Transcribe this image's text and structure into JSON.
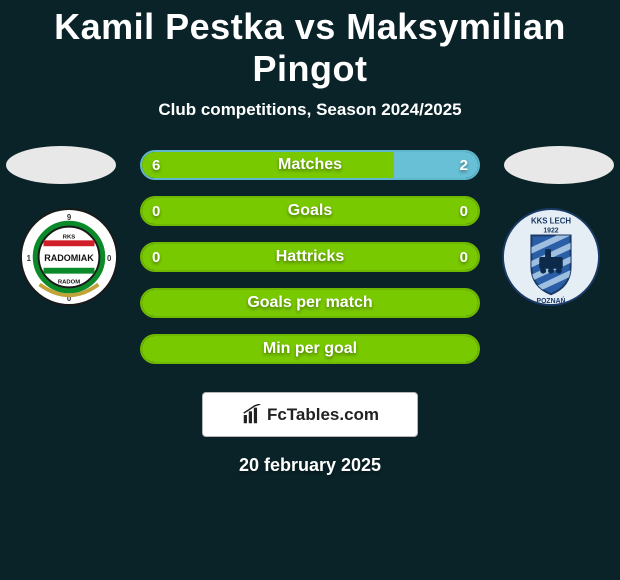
{
  "title": "Kamil Pestka vs Maksymilian Pingot",
  "subtitle": "Club competitions, Season 2024/2025",
  "date": "20 february 2025",
  "brand": "FcTables.com",
  "colors": {
    "background": "#0a2328",
    "border_green": "#6fb800",
    "border_blue": "#5fb7cc",
    "fill_green": "#79c900",
    "fill_blue": "#68c0d6",
    "text": "#ffffff"
  },
  "badges": {
    "left": {
      "name": "radomiak-badge",
      "outer_bg": "#ffffff",
      "stripe_color": "#0b8a2a",
      "ring_border": "#1a1a1a",
      "center_bg": "#ffffff",
      "flag_top": "#d11f2a",
      "flag_bottom": "#0b8a2a",
      "text_top": "RKS",
      "text_main": "RADOMIAK",
      "text_bottom": "RADOM",
      "text_color": "#111111"
    },
    "right": {
      "name": "lech-poznan-badge",
      "outer_bg": "#e6eef5",
      "inner_bg": "#2a5fa8",
      "ring_border": "#1a3a66",
      "stripes": "#9fbfe0",
      "text_top": "KKS LECH",
      "text_year": "1922",
      "text_bottom": "POZNAŃ",
      "text_color": "#e6eef5"
    }
  },
  "metrics": [
    {
      "label": "Matches",
      "left_value": "6",
      "right_value": "2",
      "left_pct": 75,
      "right_pct": 25,
      "border_color": "#5fb7cc",
      "left_color": "#79c900",
      "right_color": "#68c0d6"
    },
    {
      "label": "Goals",
      "left_value": "0",
      "right_value": "0",
      "left_pct": 100,
      "right_pct": 0,
      "border_color": "#6fb800",
      "left_color": "#79c900",
      "right_color": "#68c0d6"
    },
    {
      "label": "Hattricks",
      "left_value": "0",
      "right_value": "0",
      "left_pct": 100,
      "right_pct": 0,
      "border_color": "#6fb800",
      "left_color": "#79c900",
      "right_color": "#68c0d6"
    },
    {
      "label": "Goals per match",
      "left_value": "",
      "right_value": "",
      "left_pct": 100,
      "right_pct": 0,
      "border_color": "#6fb800",
      "left_color": "#79c900",
      "right_color": "#68c0d6"
    },
    {
      "label": "Min per goal",
      "left_value": "",
      "right_value": "",
      "left_pct": 100,
      "right_pct": 0,
      "border_color": "#6fb800",
      "left_color": "#79c900",
      "right_color": "#68c0d6"
    }
  ]
}
